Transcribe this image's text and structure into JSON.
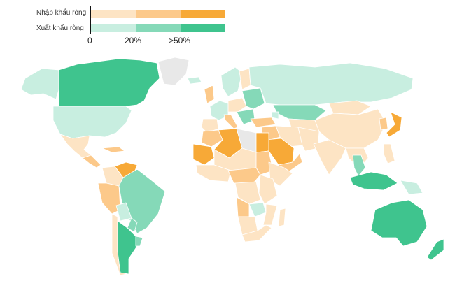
{
  "legend": {
    "import_label": "Nhập khẩu ròng",
    "export_label": "Xuất khẩu ròng",
    "ticks": [
      "0",
      "20%",
      ">50%"
    ],
    "import_colors": [
      "#fde4c4",
      "#fcc98a",
      "#f7a937"
    ],
    "export_colors": [
      "#c8eee0",
      "#85d9b8",
      "#3fc48e"
    ]
  },
  "colors": {
    "imp_light": "#fde4c4",
    "imp_mid": "#fcc98a",
    "imp_dark": "#f7a937",
    "exp_light": "#c8eee0",
    "exp_mid": "#85d9b8",
    "exp_dark": "#3fc48e",
    "no_data": "#e8e8e8"
  },
  "regions": [
    {
      "name": "alaska",
      "category": "exp_light"
    },
    {
      "name": "canada",
      "category": "exp_dark"
    },
    {
      "name": "greenland",
      "category": "no_data"
    },
    {
      "name": "usa",
      "category": "exp_light"
    },
    {
      "name": "mexico",
      "category": "imp_light"
    },
    {
      "name": "central-america",
      "category": "imp_mid"
    },
    {
      "name": "caribbean",
      "category": "imp_mid"
    },
    {
      "name": "venezuela",
      "category": "imp_dark"
    },
    {
      "name": "colombia",
      "category": "imp_light"
    },
    {
      "name": "ecuador-peru",
      "category": "imp_mid"
    },
    {
      "name": "brazil",
      "category": "exp_mid"
    },
    {
      "name": "bolivia",
      "category": "exp_light"
    },
    {
      "name": "paraguay",
      "category": "exp_mid"
    },
    {
      "name": "chile",
      "category": "imp_light"
    },
    {
      "name": "argentina",
      "category": "exp_dark"
    },
    {
      "name": "uruguay",
      "category": "exp_mid"
    },
    {
      "name": "iceland",
      "category": "exp_light"
    },
    {
      "name": "uk-ireland",
      "category": "imp_mid"
    },
    {
      "name": "scandinavia",
      "category": "exp_light"
    },
    {
      "name": "finland",
      "category": "imp_light"
    },
    {
      "name": "western-europe",
      "category": "exp_light"
    },
    {
      "name": "iberia",
      "category": "imp_light"
    },
    {
      "name": "italy",
      "category": "imp_mid"
    },
    {
      "name": "central-europe",
      "category": "imp_light"
    },
    {
      "name": "eastern-europe",
      "category": "exp_mid"
    },
    {
      "name": "balkans",
      "category": "exp_mid"
    },
    {
      "name": "russia",
      "category": "exp_light"
    },
    {
      "name": "kazakhstan",
      "category": "exp_mid"
    },
    {
      "name": "central-asia",
      "category": "imp_light"
    },
    {
      "name": "turkey",
      "category": "imp_mid"
    },
    {
      "name": "caucasus",
      "category": "exp_light"
    },
    {
      "name": "iran",
      "category": "imp_light"
    },
    {
      "name": "afghanistan-pakistan",
      "category": "imp_light"
    },
    {
      "name": "middle-east",
      "category": "imp_mid"
    },
    {
      "name": "saudi-arabia",
      "category": "imp_dark"
    },
    {
      "name": "yemen-oman",
      "category": "imp_mid"
    },
    {
      "name": "north-africa-west",
      "category": "imp_mid"
    },
    {
      "name": "algeria",
      "category": "imp_dark"
    },
    {
      "name": "libya",
      "category": "no_data"
    },
    {
      "name": "egypt",
      "category": "imp_dark"
    },
    {
      "name": "western-sahara-mauritania",
      "category": "imp_dark"
    },
    {
      "name": "sahel",
      "category": "imp_light"
    },
    {
      "name": "sudan",
      "category": "imp_mid"
    },
    {
      "name": "horn-of-africa",
      "category": "imp_light"
    },
    {
      "name": "west-africa",
      "category": "imp_light"
    },
    {
      "name": "central-africa",
      "category": "imp_mid"
    },
    {
      "name": "drc",
      "category": "imp_light"
    },
    {
      "name": "east-africa",
      "category": "imp_light"
    },
    {
      "name": "angola",
      "category": "imp_mid"
    },
    {
      "name": "zambia",
      "category": "exp_light"
    },
    {
      "name": "mozambique",
      "category": "imp_light"
    },
    {
      "name": "namibia-botswana",
      "category": "imp_light"
    },
    {
      "name": "south-africa",
      "category": "imp_light"
    },
    {
      "name": "madagascar",
      "category": "imp_light"
    },
    {
      "name": "mongolia",
      "category": "imp_light"
    },
    {
      "name": "china",
      "category": "imp_light"
    },
    {
      "name": "india",
      "category": "imp_light"
    },
    {
      "name": "southeast-asia",
      "category": "imp_light"
    },
    {
      "name": "thailand-cambodia",
      "category": "exp_mid"
    },
    {
      "name": "korea",
      "category": "imp_mid"
    },
    {
      "name": "japan",
      "category": "imp_dark"
    },
    {
      "name": "taiwan-philippines",
      "category": "imp_light"
    },
    {
      "name": "indonesia",
      "category": "exp_dark"
    },
    {
      "name": "papua",
      "category": "exp_light"
    },
    {
      "name": "australia",
      "category": "exp_dark"
    },
    {
      "name": "new-zealand",
      "category": "exp_dark"
    }
  ]
}
